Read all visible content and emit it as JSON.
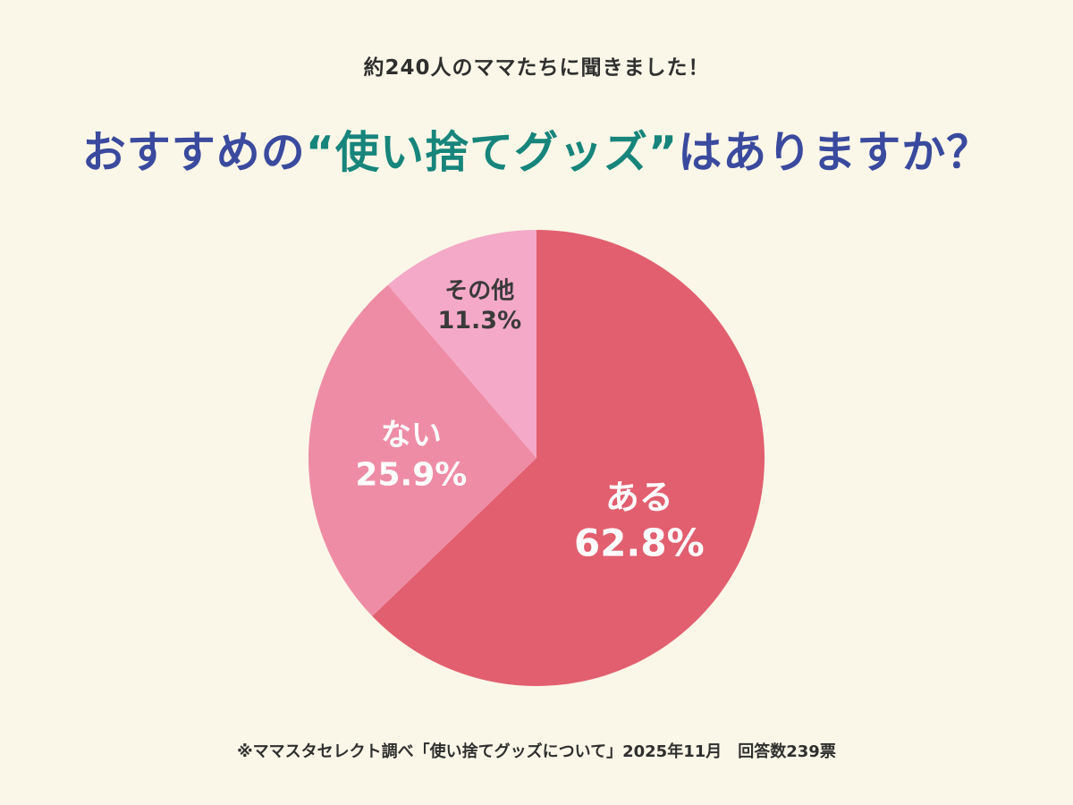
{
  "header": {
    "subtitle": "約240人のママたちに聞きました！",
    "title_prefix": "おすすめの",
    "title_highlight": "“使い捨てグッズ”",
    "title_suffix": "はありますか？"
  },
  "colors": {
    "background": "#FAF7E8",
    "title_blue": "#3A4A9E",
    "title_teal": "#17857C",
    "subtitle_text": "#2F2F2F",
    "footer_text": "#2F2F2F"
  },
  "chart_data": {
    "type": "pie",
    "title": "おすすめの“使い捨てグッズ”はありますか？",
    "start_angle": 0,
    "direction": "clockwise",
    "legend_position": "none",
    "labels_on_slices": true,
    "slices": [
      {
        "label": "ある",
        "value": 62.8,
        "value_label": "62.8%",
        "color": "#E25F6F",
        "text_color": "#FFFFFF",
        "label_angle": 120,
        "label_r": 0.52,
        "label_size": 38,
        "value_size": 42
      },
      {
        "label": "ない",
        "value": 25.9,
        "value_label": "25.9%",
        "color": "#EE8CA6",
        "text_color": "#FFFFFF",
        "label_angle": 272.5,
        "label_r": 0.55,
        "label_size": 34,
        "value_size": 36
      },
      {
        "label": "その他",
        "value": 11.3,
        "value_label": "11.3%",
        "color": "#F4A9C8",
        "text_color": "#3A3A3A",
        "label_angle": 339.7,
        "label_r": 0.72,
        "label_size": 26,
        "value_size": 27
      }
    ]
  },
  "footer": {
    "note": "※ママスタセレクト調べ「使い捨てグッズについて」2025年11月　回答数239票"
  }
}
